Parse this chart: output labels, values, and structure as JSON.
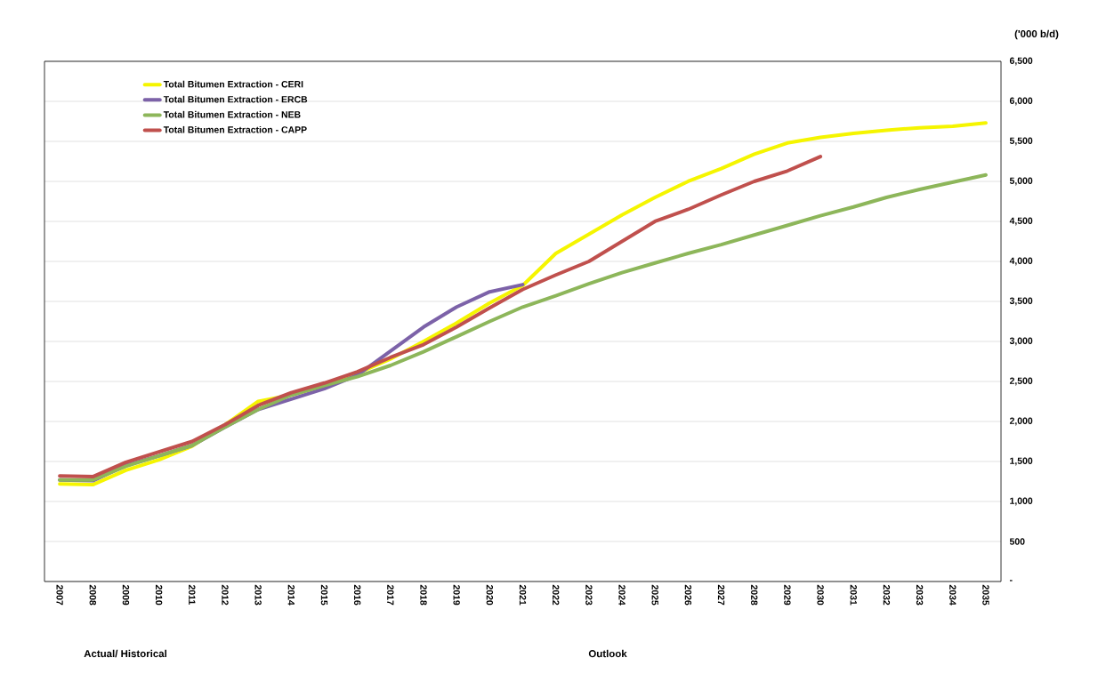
{
  "chart_data": {
    "type": "line",
    "ylabel": "('000 b/d)",
    "categories": [
      "2007",
      "2008",
      "2009",
      "2010",
      "2011",
      "2012",
      "2013",
      "2014",
      "2015",
      "2016",
      "2017",
      "2018",
      "2019",
      "2020",
      "2021",
      "2022",
      "2023",
      "2024",
      "2025",
      "2026",
      "2027",
      "2028",
      "2029",
      "2030",
      "2031",
      "2032",
      "2033",
      "2034",
      "2035"
    ],
    "series": [
      {
        "name": "Total Bitumen Extraction - CERI",
        "color": "#f5f500",
        "values": [
          1220,
          1210,
          1390,
          1520,
          1690,
          1960,
          2250,
          2330,
          2450,
          2600,
          2780,
          3000,
          3230,
          3480,
          3700,
          4100,
          4340,
          4580,
          4800,
          5000,
          5160,
          5340,
          5480,
          5550,
          5600,
          5640,
          5670,
          5690,
          5730
        ]
      },
      {
        "name": "Total Bitumen Extraction - ERCB",
        "color": "#7c62a8",
        "values": [
          1270,
          1260,
          1450,
          1570,
          1700,
          1930,
          2150,
          2280,
          2410,
          2580,
          2880,
          3180,
          3430,
          3620,
          3710,
          null,
          null,
          null,
          null,
          null,
          null,
          null,
          null,
          null,
          null,
          null,
          null,
          null,
          null
        ]
      },
      {
        "name": "Total Bitumen Extraction - NEB",
        "color": "#8db65a",
        "values": [
          1270,
          1270,
          1440,
          1570,
          1700,
          1930,
          2150,
          2330,
          2450,
          2560,
          2700,
          2870,
          3060,
          3250,
          3430,
          3570,
          3720,
          3860,
          3980,
          4100,
          4210,
          4330,
          4450,
          4570,
          4680,
          4800,
          4900,
          4990,
          5080
        ]
      },
      {
        "name": "Total Bitumen Extraction - CAPP",
        "color": "#c0504d",
        "values": [
          1320,
          1310,
          1490,
          1620,
          1750,
          1960,
          2200,
          2360,
          2480,
          2620,
          2800,
          2960,
          3180,
          3420,
          3650,
          3830,
          4000,
          4250,
          4500,
          4650,
          4830,
          5000,
          5130,
          5310,
          null,
          null,
          null,
          null,
          null
        ]
      }
    ],
    "ylim": [
      0,
      6500
    ],
    "yticks": [
      {
        "value": 0,
        "label": "-"
      },
      500,
      {
        "value": 1000,
        "label": "1,000"
      },
      {
        "value": 1500,
        "label": "1,500"
      },
      {
        "value": 2000,
        "label": "2,000"
      },
      {
        "value": 2500,
        "label": "2,500"
      },
      {
        "value": 3000,
        "label": "3,000"
      },
      {
        "value": 3500,
        "label": "3,500"
      },
      {
        "value": 4000,
        "label": "4,000"
      },
      {
        "value": 4500,
        "label": "4,500"
      },
      {
        "value": 5000,
        "label": "5,000"
      },
      {
        "value": 5500,
        "label": "5,500"
      },
      {
        "value": 6000,
        "label": "6,000"
      },
      {
        "value": 6500,
        "label": "6,500"
      }
    ],
    "grid": "y",
    "legend": "top left",
    "marker": "none",
    "line_style": "solid",
    "annotations": [
      "Actual/ Historical",
      "Outlook"
    ]
  }
}
